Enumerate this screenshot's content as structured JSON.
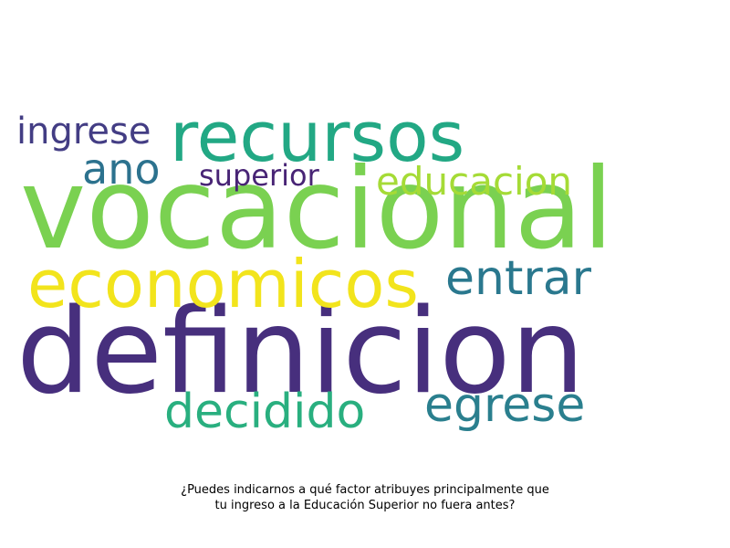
{
  "wordcloud": {
    "words": [
      {
        "key": "definicion",
        "text": "definicion",
        "color": "#472f7d"
      },
      {
        "key": "vocacional",
        "text": "vocacional",
        "color": "#7ad151"
      },
      {
        "key": "recursos",
        "text": "recursos",
        "color": "#22a884"
      },
      {
        "key": "economicos",
        "text": "economicos",
        "color": "#f2e41c"
      },
      {
        "key": "entrar",
        "text": "entrar",
        "color": "#2a788e"
      },
      {
        "key": "egrese",
        "text": "egrese",
        "color": "#2a7f8e"
      },
      {
        "key": "decidido",
        "text": "decidido",
        "color": "#29af7f"
      },
      {
        "key": "ano",
        "text": "ano",
        "color": "#2c728e"
      },
      {
        "key": "educacion",
        "text": "educacion",
        "color": "#a5db36"
      },
      {
        "key": "ingrese",
        "text": "ingrese",
        "color": "#433d84"
      },
      {
        "key": "superior",
        "text": "superior",
        "color": "#482475"
      }
    ]
  },
  "caption": {
    "line1": "¿Puedes indicarnos a qué factor atribuyes principalmente que",
    "line2": "tu ingreso a la Educación Superior no fuera antes?"
  }
}
